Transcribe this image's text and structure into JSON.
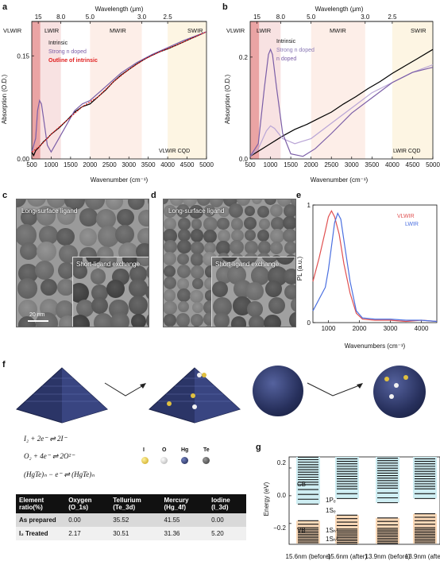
{
  "panels": {
    "a": "a",
    "b": "b",
    "c": "c",
    "d": "d",
    "e": "e",
    "f": "f",
    "g": "g"
  },
  "panel_a": {
    "top_axis_title": "Wavelength (μm)",
    "top_ticks": [
      "15",
      "8.0",
      "5.0",
      "3.0",
      "2.5"
    ],
    "bands": [
      "VLWIR",
      "LWIR",
      "MWIR",
      "SWIR"
    ],
    "legend": [
      "Intrinsic",
      "Strong n doped",
      "Outline of intrinsic"
    ],
    "corner_label": "VLWIR CQD",
    "xlabel": "Wavenumber (cm⁻¹)",
    "ylabel": "Absorption (O.D.)"
  },
  "panel_b": {
    "top_axis_title": "Wavelength (μm)",
    "top_ticks": [
      "15",
      "8.0",
      "5.0",
      "3.0",
      "2.5"
    ],
    "bands": [
      "VLWIR",
      "LWIR",
      "MWIR",
      "SWIR"
    ],
    "legend": [
      "Intrinsic",
      "Strong n doped",
      "n doped"
    ],
    "corner_label": "LWIR CQD",
    "xlabel": "Wavenumber (cm⁻¹)",
    "ylabel": "Absorption (O.D.)"
  },
  "panel_c": {
    "label_top": "Long-surface ligand",
    "label_inset": "Short-ligand exchange",
    "scale": "20 nm"
  },
  "panel_d": {
    "label_top": "Long-surface ligand",
    "label_inset": "Short-ligand exchange"
  },
  "panel_e": {
    "legend": [
      "VLWIR",
      "LWIR"
    ],
    "xlabel": "Wavenumbers (cm⁻¹)",
    "ylabel": "PL (a.u.)"
  },
  "panel_f": {
    "element_legend": [
      "I",
      "O",
      "Hg",
      "Te"
    ],
    "equations": [
      "I₂ + 2e⁻ ⇌ 2I⁻",
      "O₂ + 4e⁻ ⇌ 2O²⁻",
      "(HgTe)ₙ − e⁻ ⇌ (HgTe)ₙ"
    ],
    "table": {
      "headers": [
        "Element ratio(%)",
        "Oxygen (O_1s)",
        "Tellurium (Te_3d)",
        "Mercury (Hg_4f)",
        "Iodine (I_3d)"
      ],
      "rows": [
        [
          "As prepared",
          "0.00",
          "35.52",
          "41.55",
          "0.00"
        ],
        [
          "I₂ Treated",
          "2.17",
          "30.51",
          "31.36",
          "5.20"
        ]
      ]
    }
  },
  "panel_g": {
    "ylabel": "Energy (eV)",
    "ytick_labels": [
      "0.2",
      "0.0",
      "−0.2"
    ],
    "band_labels": [
      "CB",
      "VB"
    ],
    "columns": [
      "15.6nm (before)",
      "15.6nm (after)",
      "13.9nm (before)",
      "13.9nm (after)"
    ],
    "state_labels": [
      "1Pₑ",
      "1Sₑ",
      "1Sₕ¹",
      "1Sₕ²"
    ]
  },
  "chart_data": [
    {
      "type": "line",
      "panel": "a",
      "xlabel": "Wavenumber (cm⁻¹)",
      "ylabel": "Absorption (O.D.)",
      "xlim": [
        500,
        5000
      ],
      "ylim": [
        0,
        0.2
      ],
      "xticks": [
        500,
        1000,
        1500,
        2000,
        2500,
        3000,
        3500,
        4000,
        4500,
        5000
      ],
      "yticks": [
        0.0,
        0.15
      ],
      "series": [
        {
          "name": "Intrinsic",
          "color": "#000000",
          "x": [
            500,
            550,
            600,
            700,
            800,
            900,
            1000,
            1200,
            1400,
            1600,
            1800,
            2000,
            2200,
            2400,
            2600,
            2800,
            3000,
            3200,
            3400,
            3600,
            3800,
            4000,
            4200,
            4400,
            4600,
            4800,
            5000
          ],
          "y": [
            0.01,
            0.005,
            0.012,
            0.018,
            0.025,
            0.03,
            0.036,
            0.045,
            0.056,
            0.068,
            0.076,
            0.08,
            0.09,
            0.1,
            0.112,
            0.122,
            0.13,
            0.138,
            0.145,
            0.151,
            0.156,
            0.16,
            0.165,
            0.17,
            0.175,
            0.18,
            0.185
          ]
        },
        {
          "name": "Strong n doped",
          "color": "#7b5ea7",
          "x": [
            500,
            600,
            650,
            700,
            750,
            800,
            900,
            1000,
            1200,
            1400,
            1600,
            1800,
            2000,
            2400,
            2800,
            3200,
            3600,
            4000,
            4400,
            5000
          ],
          "y": [
            0.01,
            0.03,
            0.07,
            0.085,
            0.08,
            0.06,
            0.02,
            0.01,
            0.03,
            0.05,
            0.07,
            0.08,
            0.085,
            0.105,
            0.125,
            0.14,
            0.152,
            0.162,
            0.172,
            0.185
          ]
        },
        {
          "name": "Outline of intrinsic",
          "color": "#e02020",
          "x": [
            500,
            700,
            1000,
            1400,
            1800,
            2200,
            2600,
            3000,
            3400,
            3800,
            4200,
            4600,
            5000
          ],
          "y": [
            0.01,
            0.018,
            0.036,
            0.056,
            0.076,
            0.09,
            0.112,
            0.13,
            0.145,
            0.156,
            0.165,
            0.175,
            0.185
          ]
        }
      ]
    },
    {
      "type": "line",
      "panel": "b",
      "xlabel": "Wavenumber (cm⁻¹)",
      "ylabel": "Absorption (O.D.)",
      "xlim": [
        500,
        5000
      ],
      "ylim": [
        0,
        0.27
      ],
      "xticks": [
        500,
        1000,
        1500,
        2000,
        2500,
        3000,
        3500,
        4000,
        4500,
        5000
      ],
      "yticks": [
        0.0,
        0.2
      ],
      "series": [
        {
          "name": "Intrinsic",
          "color": "#000000",
          "x": [
            500,
            700,
            1000,
            1300,
            1600,
            1900,
            2200,
            2500,
            2800,
            3100,
            3400,
            3700,
            4000,
            4300,
            4600,
            5000
          ],
          "y": [
            0.005,
            0.015,
            0.03,
            0.045,
            0.058,
            0.068,
            0.08,
            0.092,
            0.108,
            0.122,
            0.138,
            0.152,
            0.168,
            0.182,
            0.196,
            0.215
          ]
        },
        {
          "name": "Strong n doped",
          "color": "#b9a5d6",
          "x": [
            500,
            700,
            900,
            1000,
            1100,
            1300,
            1600,
            2000,
            2500,
            3000,
            3500,
            4000,
            4500,
            5000
          ],
          "y": [
            0.005,
            0.02,
            0.055,
            0.065,
            0.06,
            0.04,
            0.03,
            0.04,
            0.07,
            0.1,
            0.13,
            0.15,
            0.17,
            0.185
          ]
        },
        {
          "name": "n doped",
          "color": "#7b5ea7",
          "x": [
            500,
            700,
            850,
            950,
            1000,
            1050,
            1150,
            1300,
            1500,
            1800,
            2100,
            2500,
            3000,
            3500,
            4000,
            4500,
            5000
          ],
          "y": [
            0.005,
            0.03,
            0.14,
            0.205,
            0.215,
            0.205,
            0.14,
            0.05,
            0.01,
            0.005,
            0.02,
            0.05,
            0.09,
            0.12,
            0.15,
            0.17,
            0.18
          ]
        }
      ]
    },
    {
      "type": "line",
      "panel": "e",
      "xlabel": "Wavenumbers (cm⁻¹)",
      "ylabel": "PL (a.u.)",
      "xlim": [
        500,
        4500
      ],
      "ylim": [
        0,
        1
      ],
      "xticks": [
        1000,
        2000,
        3000,
        4000
      ],
      "yticks": [
        0,
        1
      ],
      "series": [
        {
          "name": "VLWIR",
          "color": "#e05050",
          "x": [
            500,
            700,
            900,
            1000,
            1100,
            1200,
            1350,
            1500,
            1700,
            1900,
            2100,
            2500,
            3000,
            3500,
            4000,
            4500
          ],
          "y": [
            0.35,
            0.55,
            0.78,
            0.9,
            0.95,
            0.9,
            0.75,
            0.5,
            0.25,
            0.08,
            0.03,
            0.02,
            0.02,
            0.01,
            0.02,
            0.01
          ]
        },
        {
          "name": "LWIR",
          "color": "#4a6fe0",
          "x": [
            500,
            700,
            900,
            1000,
            1100,
            1200,
            1300,
            1400,
            1500,
            1700,
            1900,
            2100,
            2500,
            3000,
            3500,
            4000,
            4500
          ],
          "y": [
            0.1,
            0.2,
            0.3,
            0.45,
            0.65,
            0.85,
            0.93,
            0.88,
            0.7,
            0.35,
            0.1,
            0.04,
            0.03,
            0.03,
            0.02,
            0.02,
            0.01
          ]
        }
      ]
    }
  ]
}
